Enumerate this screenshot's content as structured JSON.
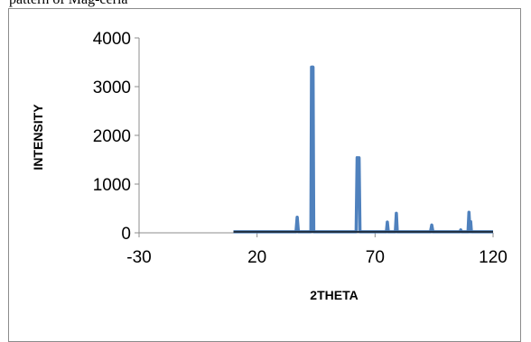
{
  "cropped_caption": "pattern of Mag-ceria",
  "chart_data": {
    "type": "line",
    "title": "",
    "xlabel": "2THETA",
    "ylabel": "INTENSITY",
    "xlim": [
      -30,
      120
    ],
    "ylim": [
      0,
      4000
    ],
    "xticks": [
      -30,
      20,
      70,
      120
    ],
    "yticks": [
      0,
      1000,
      2000,
      3000,
      4000
    ],
    "grid": false,
    "legend": "none",
    "series_color": "#4f81bd",
    "series": [
      {
        "x": [
          10,
          36.5,
          37,
          37.5,
          42.8,
          43.1,
          43.4,
          43.7,
          44,
          62,
          62.4,
          62.8,
          63.2,
          63.6,
          74.8,
          75.2,
          75.6,
          78.6,
          79,
          79.4,
          93.5,
          94,
          94.5,
          106,
          106.3,
          106.6,
          109.4,
          109.8,
          110.2,
          110.5,
          110.8,
          120
        ],
        "y": [
          20,
          20,
          320,
          20,
          20,
          3400,
          3380,
          3400,
          20,
          20,
          1540,
          1500,
          1540,
          20,
          20,
          220,
          20,
          20,
          400,
          20,
          20,
          160,
          20,
          20,
          60,
          20,
          20,
          420,
          20,
          230,
          20,
          20
        ]
      }
    ]
  }
}
